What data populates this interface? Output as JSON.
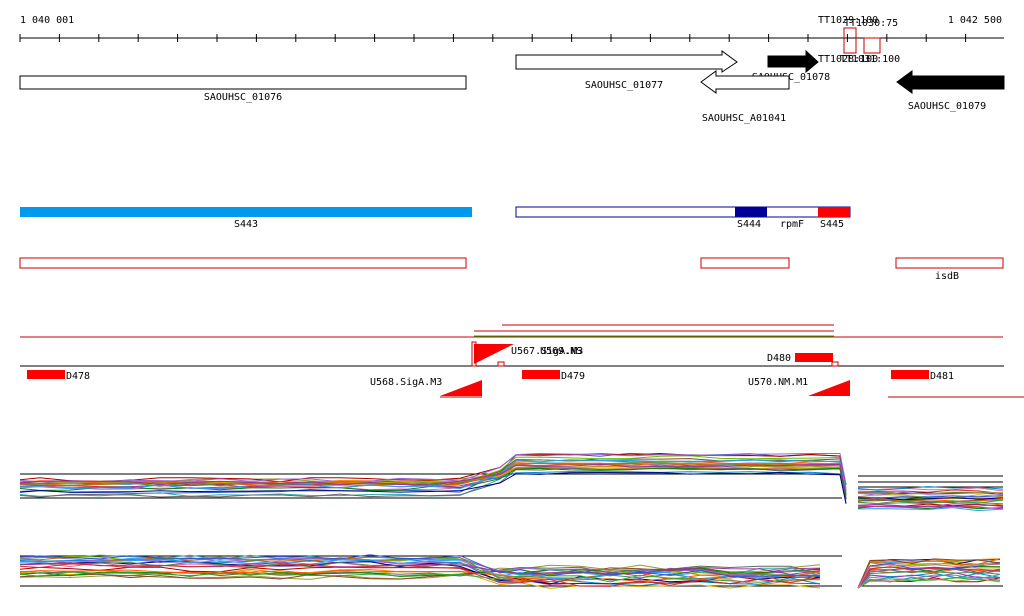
{
  "ruler": {
    "start": "1 040 001",
    "end": "1 042 500"
  },
  "genes": [
    {
      "label": "SAOUHSC_01076",
      "style": "outline"
    },
    {
      "label": "SAOUHSC_01077",
      "style": "outline"
    },
    {
      "label": "SAOUHSC_01078",
      "style": "filled"
    },
    {
      "label": "SAOUHSC_A01041",
      "style": "outline"
    },
    {
      "label": "SAOUHSC_01079",
      "style": "filled"
    }
  ],
  "terminators": [
    {
      "label": "TT1029:100"
    },
    {
      "label": "TT1030:75"
    },
    {
      "label": "TT1028:100"
    },
    {
      "label": "TT1031:100"
    }
  ],
  "segments": [
    {
      "label": "S443",
      "color": "#0099ee"
    },
    {
      "label": "S444",
      "color": "#000099"
    },
    {
      "label": "rpmF",
      "color": "#ffffff"
    },
    {
      "label": "S445",
      "color": "#ff0000"
    }
  ],
  "annotations": [
    {
      "label": "isdB"
    }
  ],
  "features": [
    {
      "label": "D478"
    },
    {
      "label": "D479"
    },
    {
      "label": "D480"
    },
    {
      "label": "D481"
    },
    {
      "label": "U568.SigA.M3"
    },
    {
      "label": "U567.SigA.M3"
    },
    {
      "label": "U569.NS"
    },
    {
      "label": "U570.NM.M1"
    }
  ],
  "colors": {
    "feature_red": "#ff0000",
    "segment_blue": "#0099ee",
    "segment_navy": "#000099"
  }
}
